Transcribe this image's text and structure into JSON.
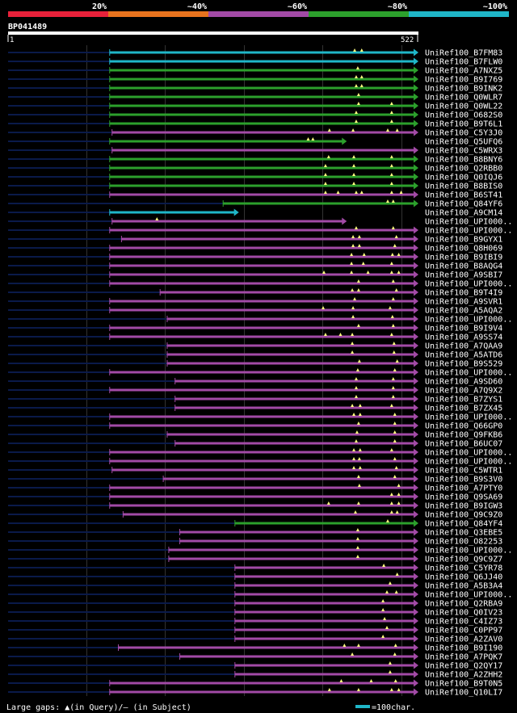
{
  "query": {
    "name": "BP041489",
    "start": "1",
    "end": "522",
    "length": 522
  },
  "legend": {
    "bands": [
      {
        "label": "20%",
        "color": "#e8213a"
      },
      {
        "label": "~40%",
        "color": "#e8731e"
      },
      {
        "label": "~60%",
        "color": "#a24aa6"
      },
      {
        "label": "~80%",
        "color": "#2ca02c"
      },
      {
        "label": "~100%",
        "color": "#1fb6c8"
      }
    ]
  },
  "footer": {
    "gaps_text": "Large gaps: ▲(in Query)/– (in Subject)",
    "scale_text": "=100char.",
    "scale_color": "#1fb6c8"
  },
  "colors": {
    "cyan": "#1fb6c8",
    "green": "#2ca02c",
    "purple": "#a24aa6",
    "dark": "#0a1a4a",
    "marker": "#ffff80",
    "gridline": "#333333"
  },
  "chart_data": {
    "type": "alignment",
    "title": "BP041489",
    "x_range": [
      1,
      522
    ],
    "hits": [
      {
        "id": "UniRef100_B7FM83",
        "color": "cyan",
        "start": 130,
        "end": 522,
        "markers": [
          441,
          450
        ]
      },
      {
        "id": "UniRef100_B7FLW0",
        "color": "cyan",
        "start": 130,
        "end": 522,
        "markers": []
      },
      {
        "id": "UniRef100_A7NXZ5",
        "color": "green",
        "start": 130,
        "end": 522,
        "markers": [
          445
        ]
      },
      {
        "id": "UniRef100_B9I769",
        "color": "green",
        "start": 130,
        "end": 522,
        "markers": [
          443,
          450
        ]
      },
      {
        "id": "UniRef100_B9INK2",
        "color": "green",
        "start": 130,
        "end": 522,
        "markers": [
          443,
          450
        ]
      },
      {
        "id": "UniRef100_Q0WLR7",
        "color": "green",
        "start": 130,
        "end": 522,
        "markers": [
          446
        ]
      },
      {
        "id": "UniRef100_Q0WL22",
        "color": "green",
        "start": 130,
        "end": 522,
        "markers": [
          446,
          488
        ]
      },
      {
        "id": "UniRef100_O682S0",
        "color": "green",
        "start": 130,
        "end": 522,
        "markers": [
          443,
          488
        ]
      },
      {
        "id": "UniRef100_B9T6L1",
        "color": "green",
        "start": 130,
        "end": 522,
        "markers": [
          443,
          488
        ]
      },
      {
        "id": "UniRef100_C5Y3J0",
        "color": "purple",
        "start": 133,
        "end": 522,
        "markers": [
          409,
          439,
          483,
          495
        ]
      },
      {
        "id": "UniRef100_Q5UFQ6",
        "color": "green",
        "start": 130,
        "end": 431,
        "markers": [
          382,
          388
        ]
      },
      {
        "id": "UniRef100_C5WRX3",
        "color": "purple",
        "start": 133,
        "end": 522,
        "markers": []
      },
      {
        "id": "UniRef100_B8BNY6",
        "color": "green",
        "start": 130,
        "end": 522,
        "markers": [
          408,
          440,
          488
        ]
      },
      {
        "id": "UniRef100_Q2RBB0",
        "color": "green",
        "start": 130,
        "end": 522,
        "markers": [
          404,
          440,
          488
        ]
      },
      {
        "id": "UniRef100_Q0IQJ6",
        "color": "green",
        "start": 130,
        "end": 522,
        "markers": [
          404,
          440,
          488
        ]
      },
      {
        "id": "UniRef100_B8BIS0",
        "color": "green",
        "start": 130,
        "end": 522,
        "markers": [
          404,
          440,
          488
        ]
      },
      {
        "id": "UniRef100_B6ST41",
        "color": "purple",
        "start": 130,
        "end": 522,
        "markers": [
          404,
          420,
          443,
          450,
          488,
          500
        ]
      },
      {
        "id": "UniRef100_Q84YF6",
        "color": "green",
        "start": 274,
        "end": 522,
        "markers": [
          483,
          490
        ]
      },
      {
        "id": "UniRef100_A9CM14",
        "color": "cyan",
        "start": 130,
        "end": 294,
        "markers": []
      },
      {
        "id": "UniRef100_UPI000..",
        "color": "purple",
        "start": 133,
        "end": 431,
        "markers": [
          190
        ]
      },
      {
        "id": "UniRef100_UPI000..",
        "color": "purple",
        "start": 130,
        "end": 522,
        "markers": [
          443,
          490
        ]
      },
      {
        "id": "UniRef100_B9GYX1",
        "color": "purple",
        "start": 145,
        "end": 522,
        "markers": [
          439,
          447,
          494
        ]
      },
      {
        "id": "UniRef100_Q8H069",
        "color": "purple",
        "start": 130,
        "end": 522,
        "markers": [
          439,
          447,
          492
        ]
      },
      {
        "id": "UniRef100_B9IBI9",
        "color": "purple",
        "start": 130,
        "end": 522,
        "markers": [
          437,
          453,
          489,
          497
        ]
      },
      {
        "id": "UniRef100_B8AQG4",
        "color": "purple",
        "start": 130,
        "end": 522,
        "markers": [
          437,
          452,
          488
        ]
      },
      {
        "id": "UniRef100_A9SBI7",
        "color": "purple",
        "start": 130,
        "end": 522,
        "markers": [
          402,
          437,
          458,
          488,
          497
        ]
      },
      {
        "id": "UniRef100_UPI000..",
        "color": "purple",
        "start": 130,
        "end": 522,
        "markers": [
          446,
          490
        ]
      },
      {
        "id": "UniRef100_B9T4I9",
        "color": "purple",
        "start": 194,
        "end": 522,
        "markers": [
          438,
          446,
          494
        ]
      },
      {
        "id": "UniRef100_A9SVR1",
        "color": "purple",
        "start": 130,
        "end": 522,
        "markers": [
          441,
          490
        ]
      },
      {
        "id": "UniRef100_A5AQA2",
        "color": "purple",
        "start": 130,
        "end": 522,
        "markers": [
          401,
          439,
          486
        ]
      },
      {
        "id": "UniRef100_UPI000..",
        "color": "purple",
        "start": 203,
        "end": 522,
        "markers": [
          439,
          489
        ]
      },
      {
        "id": "UniRef100_B9I9V4",
        "color": "purple",
        "start": 130,
        "end": 522,
        "markers": [
          446,
          490
        ]
      },
      {
        "id": "UniRef100_A9SS74",
        "color": "purple",
        "start": 130,
        "end": 522,
        "markers": [
          404,
          423,
          438,
          488
        ]
      },
      {
        "id": "UniRef100_A7QAA9",
        "color": "purple",
        "start": 203,
        "end": 522,
        "markers": [
          438,
          491
        ]
      },
      {
        "id": "UniRef100_A5ATD6",
        "color": "purple",
        "start": 203,
        "end": 522,
        "markers": [
          438,
          491
        ]
      },
      {
        "id": "UniRef100_B9S529",
        "color": "purple",
        "start": 203,
        "end": 522,
        "markers": [
          447,
          495
        ]
      },
      {
        "id": "UniRef100_UPI000..",
        "color": "purple",
        "start": 130,
        "end": 522,
        "markers": [
          445,
          492
        ]
      },
      {
        "id": "UniRef100_A9SD60",
        "color": "purple",
        "start": 213,
        "end": 522,
        "markers": [
          443,
          490
        ]
      },
      {
        "id": "UniRef100_A7Q9X2",
        "color": "purple",
        "start": 130,
        "end": 522,
        "markers": [
          443,
          490
        ]
      },
      {
        "id": "UniRef100_B7ZYS1",
        "color": "purple",
        "start": 213,
        "end": 522,
        "markers": [
          443,
          490
        ]
      },
      {
        "id": "UniRef100_B7ZX45",
        "color": "purple",
        "start": 213,
        "end": 522,
        "markers": [
          438,
          448,
          488
        ]
      },
      {
        "id": "UniRef100_UPI000..",
        "color": "purple",
        "start": 130,
        "end": 522,
        "markers": [
          440,
          448,
          492
        ]
      },
      {
        "id": "UniRef100_Q66GP0",
        "color": "purple",
        "start": 130,
        "end": 522,
        "markers": [
          446,
          492
        ]
      },
      {
        "id": "UniRef100_Q9FKB6",
        "color": "purple",
        "start": 203,
        "end": 522,
        "markers": [
          444,
          492
        ]
      },
      {
        "id": "UniRef100_B6UC07",
        "color": "purple",
        "start": 213,
        "end": 522,
        "markers": [
          443,
          492
        ]
      },
      {
        "id": "UniRef100_UPI000..",
        "color": "purple",
        "start": 130,
        "end": 522,
        "markers": [
          440,
          448,
          488
        ]
      },
      {
        "id": "UniRef100_UPI000..",
        "color": "purple",
        "start": 130,
        "end": 522,
        "markers": [
          440,
          447,
          492
        ]
      },
      {
        "id": "UniRef100_C5WTR1",
        "color": "purple",
        "start": 133,
        "end": 522,
        "markers": [
          440,
          448,
          494
        ]
      },
      {
        "id": "UniRef100_B9S3V0",
        "color": "purple",
        "start": 198,
        "end": 522,
        "markers": [
          446,
          492
        ]
      },
      {
        "id": "UniRef100_A7PTY0",
        "color": "purple",
        "start": 130,
        "end": 522,
        "markers": [
          447,
          497
        ]
      },
      {
        "id": "UniRef100_Q9SA69",
        "color": "purple",
        "start": 130,
        "end": 522,
        "markers": [
          488,
          497
        ]
      },
      {
        "id": "UniRef100_B9IGW3",
        "color": "purple",
        "start": 130,
        "end": 522,
        "markers": [
          408,
          446,
          488,
          497
        ]
      },
      {
        "id": "UniRef100_Q9C9Z0",
        "color": "purple",
        "start": 147,
        "end": 522,
        "markers": [
          442,
          488,
          495
        ]
      },
      {
        "id": "UniRef100_Q84YF4",
        "color": "green",
        "start": 289,
        "end": 522,
        "markers": [
          483
        ]
      },
      {
        "id": "UniRef100_Q3EBE5",
        "color": "purple",
        "start": 219,
        "end": 522,
        "markers": [
          445
        ]
      },
      {
        "id": "UniRef100_O82253",
        "color": "purple",
        "start": 219,
        "end": 522,
        "markers": [
          445
        ]
      },
      {
        "id": "UniRef100_UPI000..",
        "color": "purple",
        "start": 205,
        "end": 522,
        "markers": [
          445
        ]
      },
      {
        "id": "UniRef100_Q9C9Z7",
        "color": "purple",
        "start": 205,
        "end": 522,
        "markers": [
          445
        ]
      },
      {
        "id": "UniRef100_C5YR78",
        "color": "purple",
        "start": 289,
        "end": 522,
        "markers": [
          478
        ]
      },
      {
        "id": "UniRef100_Q6JJ40",
        "color": "purple",
        "start": 289,
        "end": 522,
        "markers": [
          495
        ]
      },
      {
        "id": "UniRef100_A5B3A4",
        "color": "purple",
        "start": 289,
        "end": 522,
        "markers": [
          486
        ]
      },
      {
        "id": "UniRef100_UPI000..",
        "color": "purple",
        "start": 289,
        "end": 522,
        "markers": [
          482,
          494
        ]
      },
      {
        "id": "UniRef100_Q2RBA9",
        "color": "purple",
        "start": 289,
        "end": 522,
        "markers": [
          477
        ]
      },
      {
        "id": "UniRef100_Q0IV23",
        "color": "purple",
        "start": 289,
        "end": 522,
        "markers": [
          477
        ]
      },
      {
        "id": "UniRef100_C4IZ73",
        "color": "purple",
        "start": 289,
        "end": 522,
        "markers": [
          479
        ]
      },
      {
        "id": "UniRef100_C0PP97",
        "color": "purple",
        "start": 289,
        "end": 522,
        "markers": [
          482
        ]
      },
      {
        "id": "UniRef100_A2ZAV0",
        "color": "purple",
        "start": 289,
        "end": 522,
        "markers": [
          477
        ]
      },
      {
        "id": "UniRef100_B9I190",
        "color": "purple",
        "start": 141,
        "end": 522,
        "markers": [
          428,
          446,
          493
        ]
      },
      {
        "id": "UniRef100_A7PQK7",
        "color": "purple",
        "start": 219,
        "end": 522,
        "markers": [
          438,
          492
        ]
      },
      {
        "id": "UniRef100_Q2QY17",
        "color": "purple",
        "start": 289,
        "end": 522,
        "markers": [
          486
        ]
      },
      {
        "id": "UniRef100_A2ZHH2",
        "color": "purple",
        "start": 289,
        "end": 522,
        "markers": [
          486
        ]
      },
      {
        "id": "UniRef100_B9T0N5",
        "color": "purple",
        "start": 130,
        "end": 522,
        "markers": [
          424,
          462,
          493
        ]
      },
      {
        "id": "UniRef100_Q10LI7",
        "color": "purple",
        "start": 130,
        "end": 522,
        "markers": [
          409,
          446,
          488,
          497
        ]
      }
    ]
  }
}
